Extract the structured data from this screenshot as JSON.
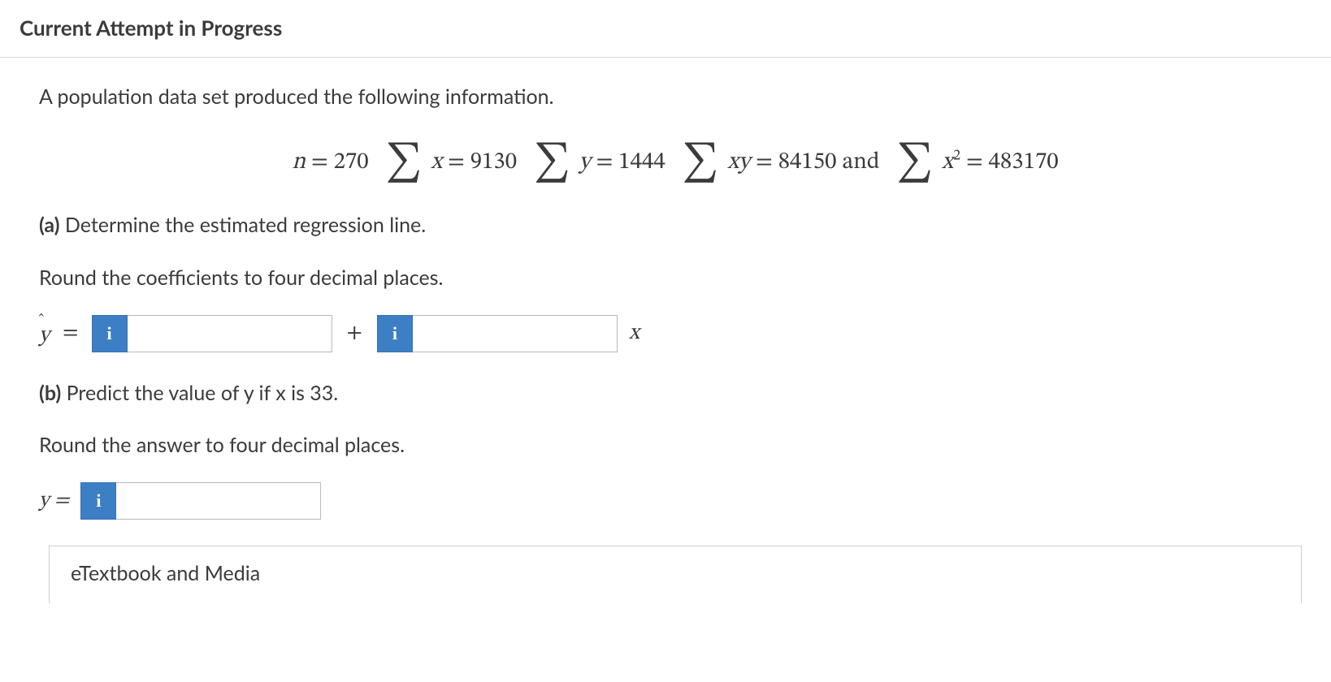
{
  "header": {
    "title": "Current Attempt in Progress"
  },
  "intro": "A population data set produced the following information.",
  "equation": {
    "n_label": "n",
    "n_value": "270",
    "sum_x_var": "x",
    "sum_x_value": "9130",
    "sum_y_var": "y",
    "sum_y_value": "1444",
    "sum_xy_var": "xy",
    "sum_xy_value": "84150",
    "and_text": "and",
    "sum_x2_base": "x",
    "sum_x2_exp": "2",
    "sum_x2_value": "483170"
  },
  "part_a": {
    "label": "(a)",
    "text": " Determine the estimated regression line.",
    "hint": "Round the coefficients to four decimal places.",
    "yhat_char": "y",
    "hat_char": "ˆ",
    "equals": "=",
    "plus": "+",
    "x_var": "x"
  },
  "part_b": {
    "label": "(b)",
    "text": " Predict the value of y if x is 33.",
    "hint": "Round the answer to four decimal places.",
    "y_label": "y =",
    "equals": ""
  },
  "inputs": {
    "intercept": "",
    "slope": "",
    "y_pred": ""
  },
  "info_glyph": "i",
  "etextbook": "eTextbook and Media",
  "colors": {
    "info_bg": "#3d7fc4",
    "border": "#b9b9b9",
    "text": "#3b3b3b"
  }
}
